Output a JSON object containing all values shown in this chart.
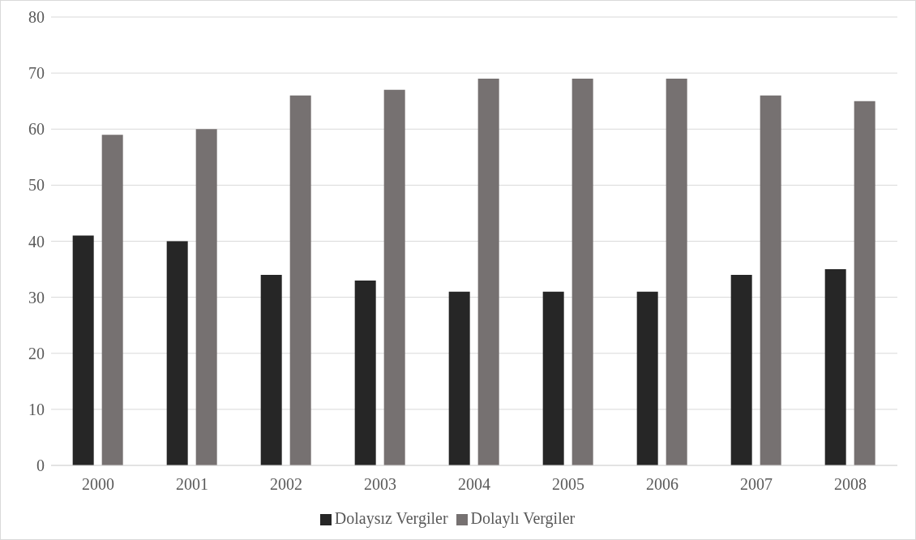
{
  "chart_data": {
    "type": "bar",
    "categories": [
      "2000",
      "2001",
      "2002",
      "2003",
      "2004",
      "2005",
      "2006",
      "2007",
      "2008"
    ],
    "series": [
      {
        "name": "Dolaysız Vergiler",
        "color": "#262626",
        "values": [
          41,
          40,
          34,
          33,
          31,
          31,
          31,
          34,
          35
        ]
      },
      {
        "name": "Dolaylı Vergiler",
        "color": "#767171",
        "values": [
          59,
          60,
          66,
          67,
          69,
          69,
          69,
          66,
          65
        ]
      }
    ],
    "ylim": [
      0,
      80
    ],
    "yticks": [
      0,
      10,
      20,
      30,
      40,
      50,
      60,
      70,
      80
    ],
    "grid": "y",
    "legend": "bottom"
  }
}
